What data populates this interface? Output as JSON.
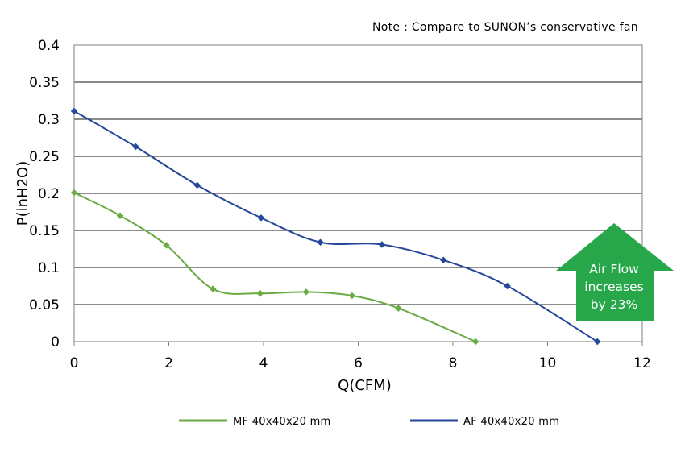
{
  "note": "Note : Compare to SUNON’s conservative fan",
  "annotation": {
    "lines": [
      "Air Flow",
      "increases",
      "by 23%"
    ],
    "color": "#27a74a"
  },
  "chart_data": {
    "type": "line",
    "title": "",
    "xlabel": "Q(CFM)",
    "ylabel": "P(inH2O)",
    "xlim": [
      0,
      12
    ],
    "ylim": [
      0,
      0.4
    ],
    "x_ticks": [
      0,
      2,
      4,
      6,
      8,
      10,
      12
    ],
    "y_ticks": [
      0,
      0.05,
      0.1,
      0.15,
      0.2,
      0.25,
      0.3,
      0.35,
      0.4
    ],
    "x_tick_labels": [
      "0",
      "2",
      "4",
      "6",
      "8",
      "10",
      "12"
    ],
    "y_tick_labels": [
      "0",
      "0.05",
      "0.1",
      "0.15",
      "0.2",
      "0.25",
      "0.3",
      "0.35",
      "0.4"
    ],
    "grid": "horizontal",
    "legend_position": "bottom",
    "series": [
      {
        "name": "MF 40x40x20 mm",
        "color": "#6aab45",
        "x": [
          0,
          0.97,
          1.95,
          2.93,
          3.93,
          4.9,
          5.87,
          6.85,
          8.48
        ],
        "y": [
          0.201,
          0.17,
          0.13,
          0.071,
          0.065,
          0.067,
          0.062,
          0.045,
          0
        ]
      },
      {
        "name": "AF 40x40x20 mm",
        "color": "#24479a",
        "x": [
          0,
          1.3,
          2.6,
          3.95,
          5.2,
          6.5,
          7.8,
          9.15,
          11.05
        ],
        "y": [
          0.311,
          0.263,
          0.211,
          0.167,
          0.134,
          0.131,
          0.11,
          0.075,
          0
        ]
      }
    ]
  }
}
